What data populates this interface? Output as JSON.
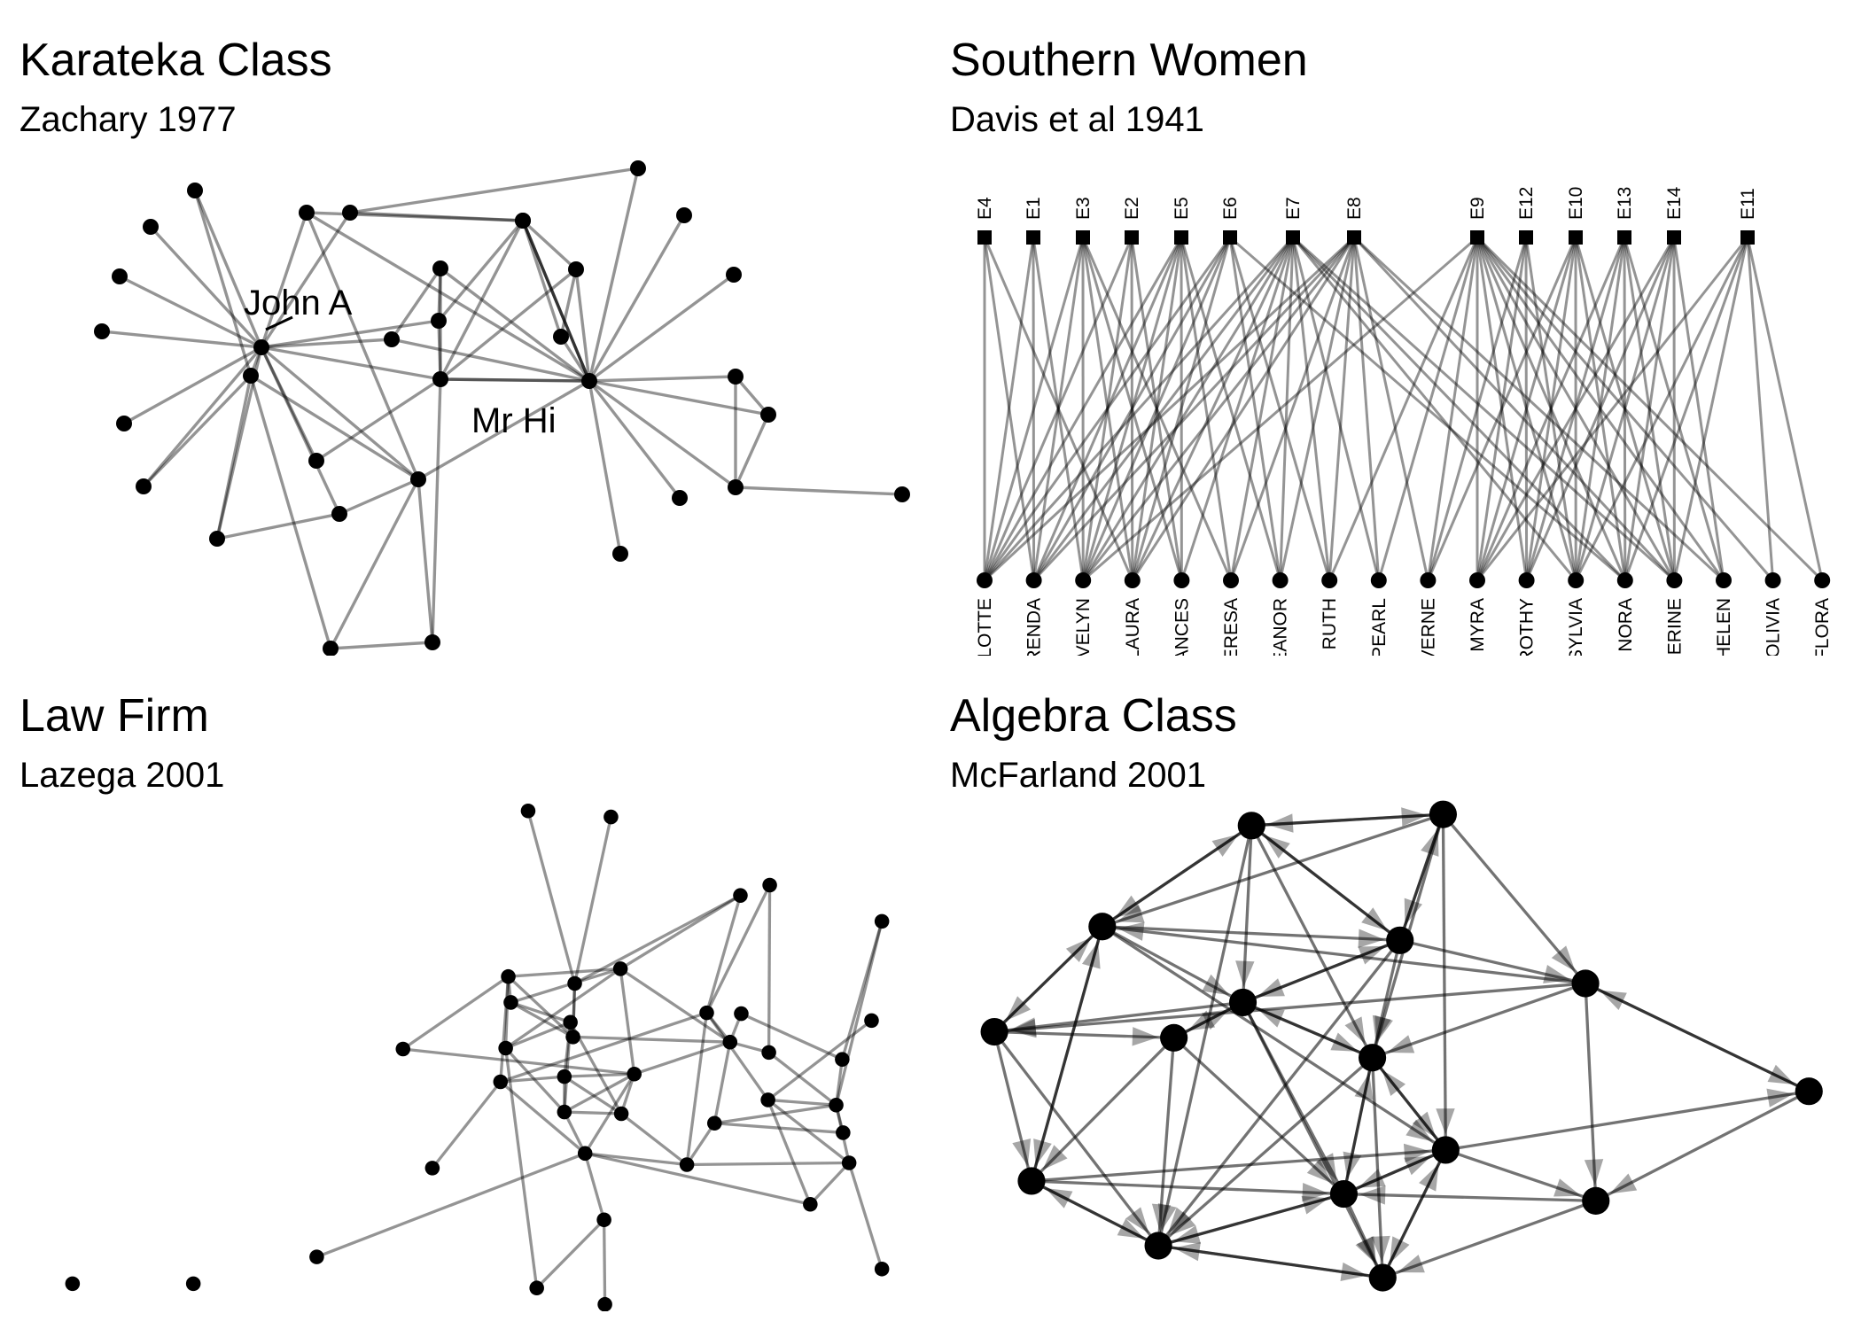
{
  "panels": {
    "karate": {
      "title": "Karateka Class",
      "subtitle": "Zachary 1977",
      "labels": {
        "john": "John A",
        "hi": "Mr Hi"
      }
    },
    "women": {
      "title": "Southern Women",
      "subtitle": "Davis et al 1941",
      "events": [
        "E4",
        "E1",
        "E3",
        "E2",
        "E5",
        "E6",
        "E7",
        "E8",
        "E9",
        "E12",
        "E10",
        "E13",
        "E14",
        "E11"
      ],
      "women": [
        "RLOTTE",
        "RENDA",
        "EVELYN",
        "LAURA",
        "ANCES",
        "HERESA",
        "EANOR",
        "RUTH",
        "PEARL",
        "VERNE",
        "MYRA",
        "ROTHY",
        "SYLVIA",
        "NORA",
        "HERINE",
        "HELEN",
        "OLIVIA",
        "FLORA"
      ]
    },
    "law": {
      "title": "Law Firm",
      "subtitle": "Lazega 2001"
    },
    "algebra": {
      "title": "Algebra Class",
      "subtitle": "McFarland 2001"
    }
  },
  "colors": {
    "edge": "#000000",
    "node": "#000000",
    "background": "#ffffff"
  }
}
